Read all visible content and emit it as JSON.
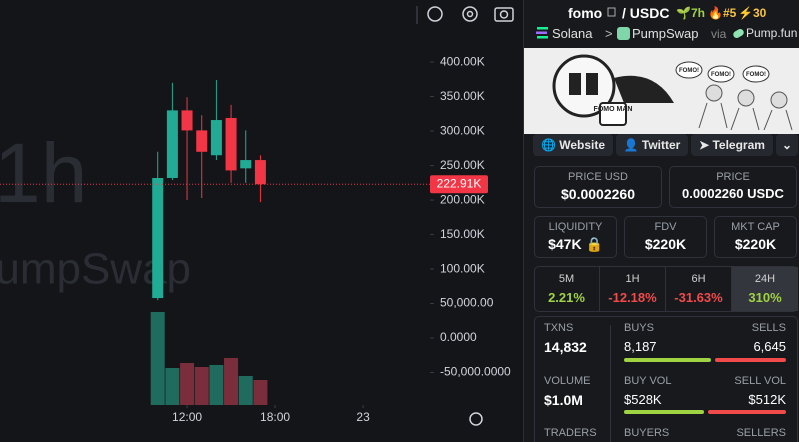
{
  "chart": {
    "watermark_interval": "1h",
    "watermark_dex": "PumpSwap",
    "ylim": [
      -97000,
      490000
    ],
    "yticks": [
      {
        "value": 400000,
        "label": "400.00K"
      },
      {
        "value": 350000,
        "label": "350.00K"
      },
      {
        "value": 300000,
        "label": "300.00K"
      },
      {
        "value": 250000,
        "label": "250.00K"
      },
      {
        "value": 200000,
        "label": "200.00K"
      },
      {
        "value": 150000,
        "label": "150.00K"
      },
      {
        "value": 100000,
        "label": "100.00K"
      },
      {
        "value": 50000,
        "label": "50,000.00"
      },
      {
        "value": 0,
        "label": "0.0000"
      },
      {
        "value": -50000,
        "label": "-50,000.0000"
      }
    ],
    "xlim": [
      -0.75,
      28.56
    ],
    "xticks": [
      {
        "value": 12,
        "label": "12:00"
      },
      {
        "value": 18,
        "label": "18:00"
      },
      {
        "value": 24,
        "label": "23"
      }
    ],
    "current_price": {
      "value": 222910,
      "label": "222.91K"
    },
    "up_color": "#22ab94",
    "down_color": "#f23645",
    "up_volume_color": "#1f6b5e",
    "down_volume_color": "#7a2e3b",
    "candles": [
      {
        "t": 10,
        "open": 58000,
        "high": 270000,
        "low": 55000,
        "close": 232000,
        "volume": 93
      },
      {
        "t": 11,
        "open": 232000,
        "high": 370000,
        "low": 229000,
        "close": 330000,
        "volume": 37
      },
      {
        "t": 12,
        "open": 330000,
        "high": 349000,
        "low": 200000,
        "close": 301000,
        "volume": 42
      },
      {
        "t": 13,
        "open": 301000,
        "high": 323000,
        "low": 203000,
        "close": 270000,
        "volume": 38
      },
      {
        "t": 14,
        "open": 265000,
        "high": 374000,
        "low": 258000,
        "close": 316000,
        "volume": 40
      },
      {
        "t": 15,
        "open": 319000,
        "high": 338000,
        "low": 225000,
        "close": 243000,
        "volume": 47
      },
      {
        "t": 16,
        "open": 246000,
        "high": 301000,
        "low": 225000,
        "close": 258000,
        "volume": 29
      },
      {
        "t": 17,
        "open": 258000,
        "high": 265000,
        "low": 197000,
        "close": 223000,
        "volume": 25
      }
    ]
  },
  "header": {
    "token": "fomo",
    "pair": "/ USDC",
    "age": "7h",
    "rank": "#5",
    "boosts": "30",
    "chain": "Solana",
    "separator": ">",
    "dex": "PumpSwap",
    "via": "via",
    "launchpad": "Pump.fun"
  },
  "banner": {
    "mascot": "FOMO MAN",
    "shout": "FOMO!"
  },
  "links": [
    "Website",
    "Twitter",
    "Telegram"
  ],
  "prices": [
    {
      "label": "PRICE USD",
      "value": "$0.0002260"
    },
    {
      "label": "PRICE",
      "value": "0.0002260 USDC"
    }
  ],
  "metrics": [
    {
      "label": "LIQUIDITY",
      "value": "$47K"
    },
    {
      "label": "FDV",
      "value": "$220K"
    },
    {
      "label": "MKT CAP",
      "value": "$220K"
    }
  ],
  "tabs": [
    {
      "label": "5M",
      "value": "2.21%",
      "color": "#9fd341"
    },
    {
      "label": "1H",
      "value": "-12.18%",
      "color": "#f04a4a"
    },
    {
      "label": "6H",
      "value": "-31.63%",
      "color": "#f04a4a"
    },
    {
      "label": "24H",
      "value": "310%",
      "color": "#9fd341",
      "selected": true
    }
  ],
  "stats": {
    "txns_label": "TXNS",
    "txns": "14,832",
    "buys_label": "BUYS",
    "buys": {
      "value": 8187,
      "label": "8,187"
    },
    "sells_label": "SELLS",
    "sells": {
      "value": 6645,
      "label": "6,645"
    },
    "volume_label": "VOLUME",
    "volume": "$1.0M",
    "buy_vol_label": "BUY VOL",
    "buy_vol": {
      "value": 528000,
      "label": "$528K"
    },
    "sell_vol_label": "SELL VOL",
    "sell_vol": {
      "value": 512000,
      "label": "$512K"
    },
    "traders_label": "TRADERS",
    "buyers_label": "BUYERS",
    "sellers_label": "SELLERS",
    "buy_color": "#9fd341",
    "sell_color": "#f04a4a"
  }
}
